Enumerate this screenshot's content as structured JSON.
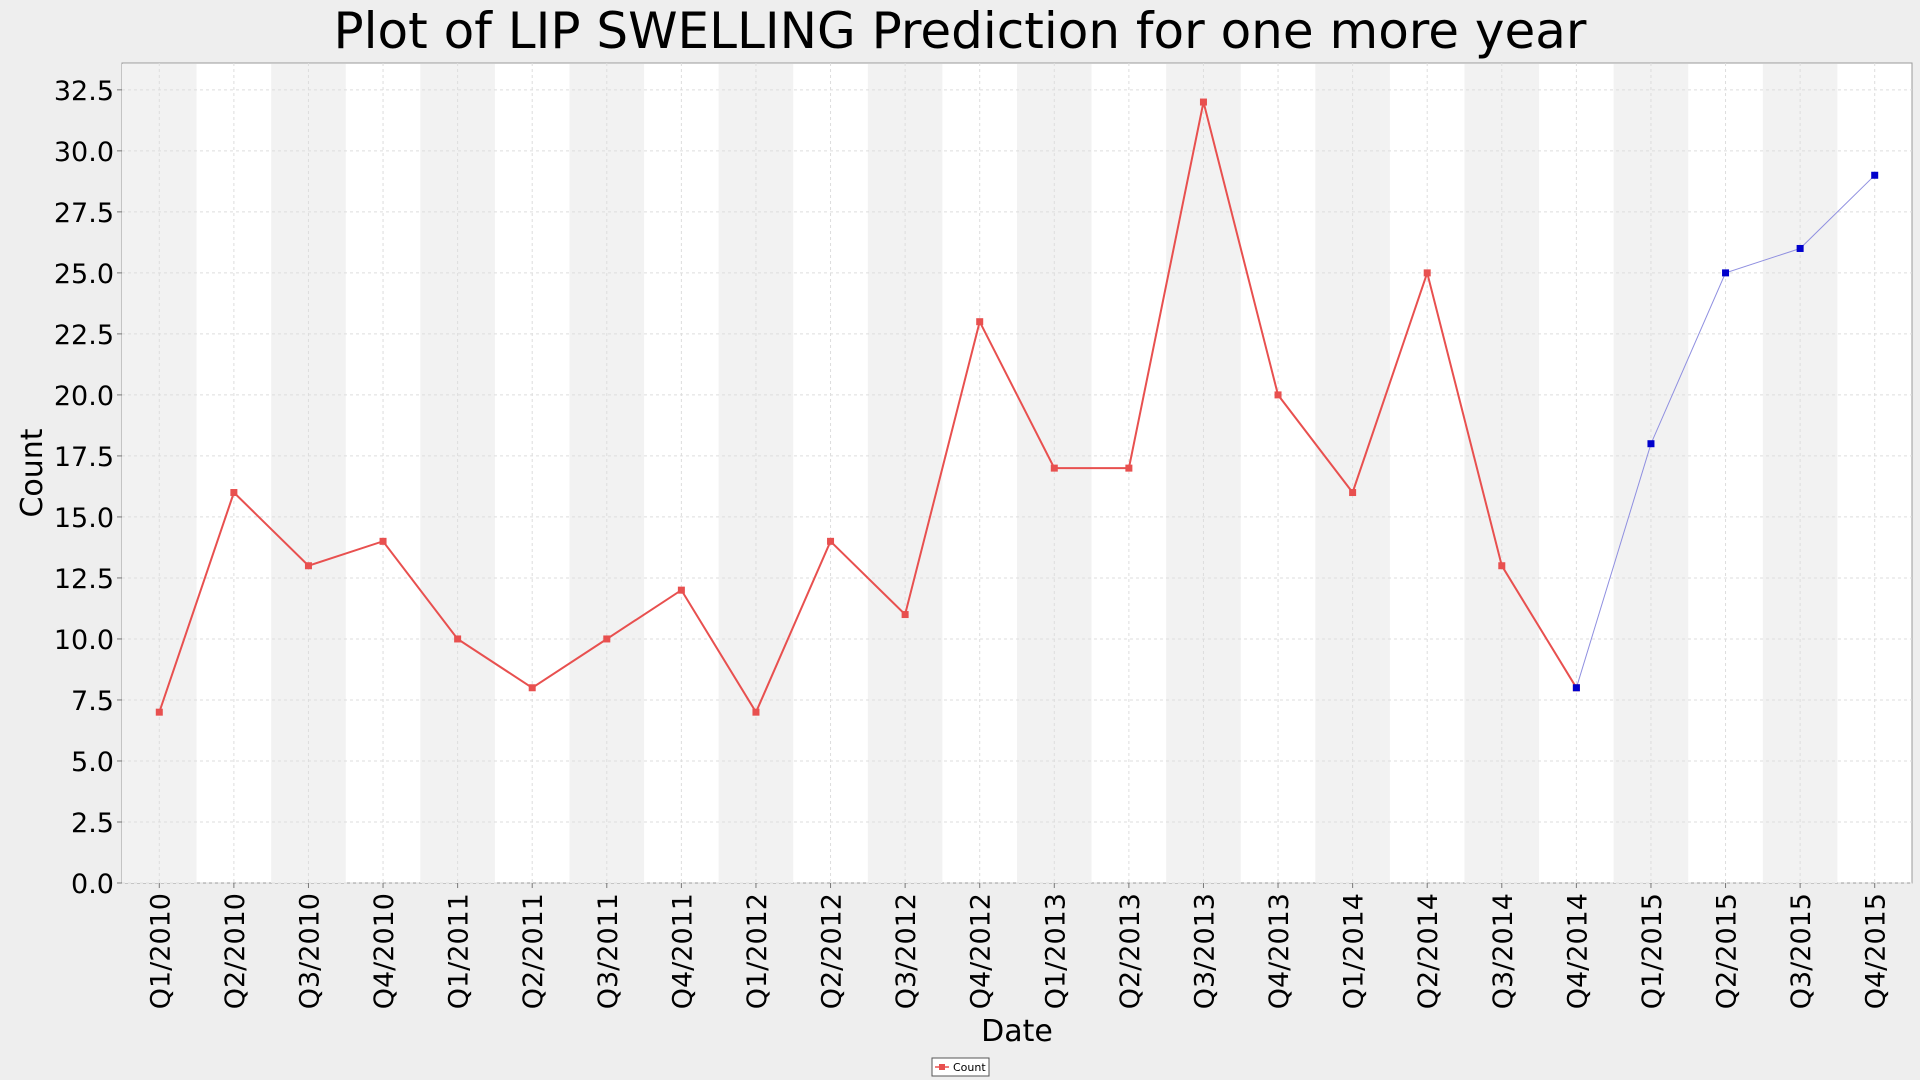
{
  "chart_data": {
    "type": "line",
    "title": "Plot of LIP SWELLING Prediction for one more year",
    "xlabel": "Date",
    "ylabel": "Count",
    "ylim": [
      0,
      33.6
    ],
    "y_ticks": [
      "0.0",
      "2.5",
      "5.0",
      "7.5",
      "10.0",
      "12.5",
      "15.0",
      "17.5",
      "20.0",
      "22.5",
      "25.0",
      "27.5",
      "30.0",
      "32.5"
    ],
    "categories": [
      "Q1/2010",
      "Q2/2010",
      "Q3/2010",
      "Q4/2010",
      "Q1/2011",
      "Q2/2011",
      "Q3/2011",
      "Q4/2011",
      "Q1/2012",
      "Q2/2012",
      "Q3/2012",
      "Q4/2012",
      "Q1/2013",
      "Q2/2013",
      "Q3/2013",
      "Q4/2013",
      "Q1/2014",
      "Q2/2014",
      "Q3/2014",
      "Q4/2014",
      "Q1/2015",
      "Q2/2015",
      "Q3/2015",
      "Q4/2015"
    ],
    "series": [
      {
        "name": "Count",
        "color": "#e8504f",
        "values": [
          7,
          16,
          13,
          14,
          10,
          8,
          10,
          12,
          7,
          14,
          11,
          23,
          17,
          17,
          32,
          20,
          16,
          25,
          13,
          8,
          null,
          null,
          null,
          null
        ]
      },
      {
        "color": "#0000cc",
        "line_color": "#8f8fe0",
        "values": [
          null,
          null,
          null,
          null,
          null,
          null,
          null,
          null,
          null,
          null,
          null,
          null,
          null,
          null,
          null,
          null,
          null,
          null,
          null,
          8,
          18,
          25,
          26,
          29
        ]
      }
    ],
    "grid": true,
    "legend_position": "bottom-center",
    "colors": {
      "background": "#eeeeee",
      "plot_background": "#ffffff",
      "band": "#f2f2f2",
      "gridline": "#dddddd"
    }
  }
}
